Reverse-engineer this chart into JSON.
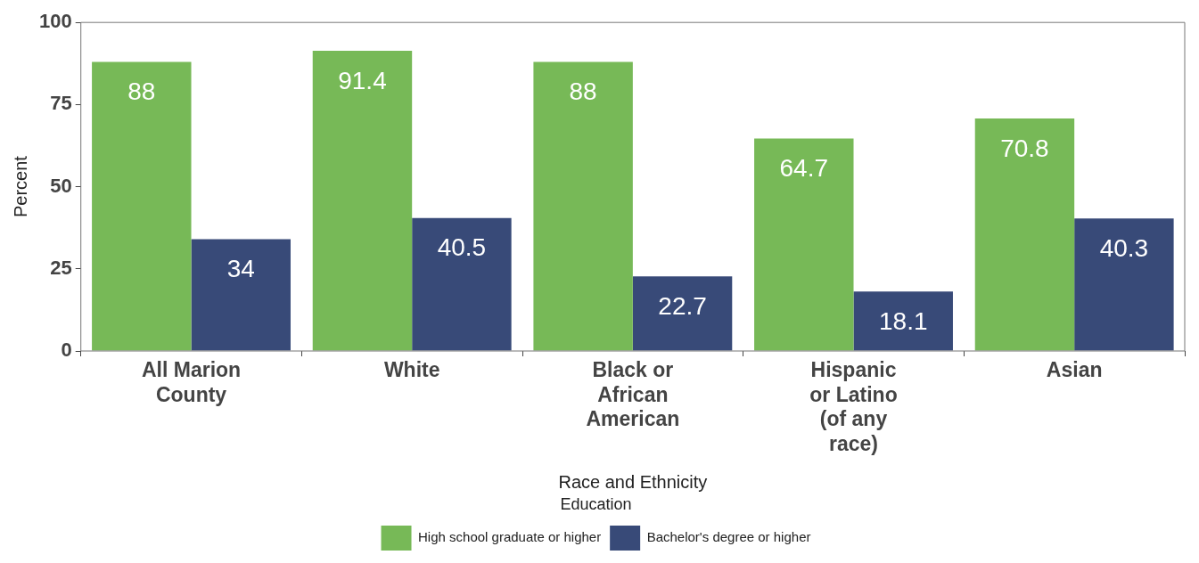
{
  "chart_data": {
    "type": "bar",
    "xlabel": "Race and Ethnicity",
    "ylabel": "Percent",
    "legend_title": "Education",
    "categories": [
      "All Marion County",
      "White",
      "Black or African American",
      "Hispanic or Latino (of any race)",
      "Asian"
    ],
    "series": [
      {
        "name": "High school graduate or higher",
        "color": "#77b957",
        "values": [
          88,
          91.4,
          88,
          64.7,
          70.8
        ]
      },
      {
        "name": "Bachelor's degree or higher",
        "color": "#384a78",
        "values": [
          34,
          40.5,
          22.7,
          18.1,
          40.3
        ]
      }
    ],
    "ylim": [
      0,
      100
    ],
    "yticks": [
      0,
      25,
      50,
      75,
      100
    ],
    "grid": false,
    "legend": "bottom",
    "data_labels": true
  }
}
